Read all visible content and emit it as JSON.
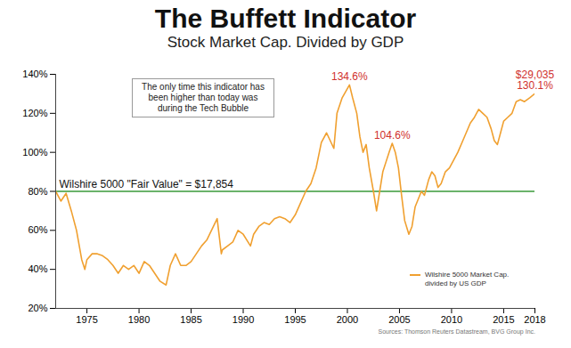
{
  "chart_data": {
    "type": "line",
    "title": "The Buffett Indicator",
    "subtitle": "Stock Market Cap. Divided by GDP",
    "x": [
      1972,
      1972.5,
      1973,
      1973.5,
      1974,
      1974.5,
      1974.8,
      1975,
      1975.5,
      1976,
      1976.5,
      1977,
      1977.5,
      1978,
      1978.5,
      1979,
      1979.5,
      1980,
      1980.5,
      1981,
      1981.5,
      1982,
      1982.6,
      1983,
      1983.5,
      1984,
      1984.5,
      1985,
      1985.5,
      1986,
      1986.5,
      1987.5,
      1987.9,
      1988,
      1988.5,
      1989,
      1989.5,
      1990,
      1990.7,
      1991,
      1991.5,
      1992,
      1992.5,
      1993,
      1993.5,
      1994,
      1994.5,
      1995,
      1995.5,
      1996,
      1996.5,
      1997,
      1997.5,
      1998,
      1998.7,
      1999,
      1999.5,
      2000.2,
      2000.5,
      2000.9,
      2001.2,
      2001.5,
      2001.8,
      2002.1,
      2002.5,
      2002.8,
      2003.1,
      2003.4,
      2003.7,
      2004.0,
      2004.3,
      2004.6,
      2004.9,
      2005.2,
      2005.5,
      2005.9,
      2006.2,
      2006.5,
      2006.8,
      2007.1,
      2007.4,
      2007.8,
      2008.1,
      2008.4,
      2008.7,
      2009.0,
      2009.4,
      2009.8,
      2010.2,
      2010.6,
      2011.0,
      2011.4,
      2011.8,
      2012.2,
      2012.6,
      2013.0,
      2013.4,
      2013.8,
      2014.1,
      2014.4,
      2014.7,
      2015.0,
      2015.4,
      2015.8,
      2016.2,
      2016.6,
      2017.0,
      2017.5,
      2018
    ],
    "series": [
      {
        "name": "Wilshire 5000 Market Cap. divided by US GDP",
        "color": "#f0a030",
        "values": [
          80,
          75,
          79,
          70,
          60,
          45,
          40,
          45,
          48,
          48,
          47,
          45,
          42,
          38,
          42,
          40,
          42,
          38,
          44,
          42,
          38,
          34,
          32,
          42,
          48,
          42,
          42,
          44,
          48,
          52,
          55,
          66,
          48,
          50,
          52,
          54,
          60,
          58,
          52,
          58,
          62,
          64,
          63,
          66,
          67,
          66,
          64,
          68,
          74,
          80,
          84,
          92,
          105,
          110,
          102,
          120,
          128,
          134.6,
          128,
          120,
          108,
          100,
          104,
          92,
          80,
          70,
          80,
          90,
          95,
          100,
          104.6,
          100,
          92,
          78,
          65,
          58,
          62,
          72,
          76,
          80,
          78,
          86,
          90,
          88,
          82,
          84,
          90,
          92,
          96,
          100,
          105,
          110,
          115,
          118,
          122,
          120,
          118,
          112,
          106,
          104,
          110,
          116,
          118,
          120,
          126,
          127,
          126,
          128,
          130.1
        ]
      }
    ],
    "xlim": [
      1972,
      2018
    ],
    "xticks": [
      1975,
      1980,
      1985,
      1990,
      1995,
      2000,
      2005,
      2010,
      2015,
      2018
    ],
    "ylim": [
      20,
      140
    ],
    "yticks": [
      {
        "value": 20,
        "label": "20%"
      },
      {
        "value": 40,
        "label": "40%"
      },
      {
        "value": 60,
        "label": "60%"
      },
      {
        "value": 80,
        "label": "80%"
      },
      {
        "value": 100,
        "label": "100%"
      },
      {
        "value": 120,
        "label": "120%"
      },
      {
        "value": 140,
        "label": "140%"
      }
    ],
    "grid": false,
    "legend": "bottom-right",
    "reference_line": {
      "y": 80,
      "label": "Wilshire 5000 \"Fair Value\" = $17,854",
      "color": "#3a9a3a"
    },
    "point_labels": [
      {
        "x": 2000.2,
        "y": 134.6,
        "label": [
          "134.6%"
        ],
        "color": "#d0312d"
      },
      {
        "x": 2004.3,
        "y": 104.6,
        "label": [
          "104.6%"
        ],
        "color": "#d0312d"
      },
      {
        "x": 2018,
        "y": 130.1,
        "label": [
          "$29,035",
          "130.1%"
        ],
        "color": "#d0312d"
      }
    ],
    "annotations": [
      {
        "text": "The only time this indicator has been higher than today was during the Tech Bubble"
      }
    ],
    "source": "Sources: Thomson Reuters Datastream, BVG Group Inc."
  }
}
